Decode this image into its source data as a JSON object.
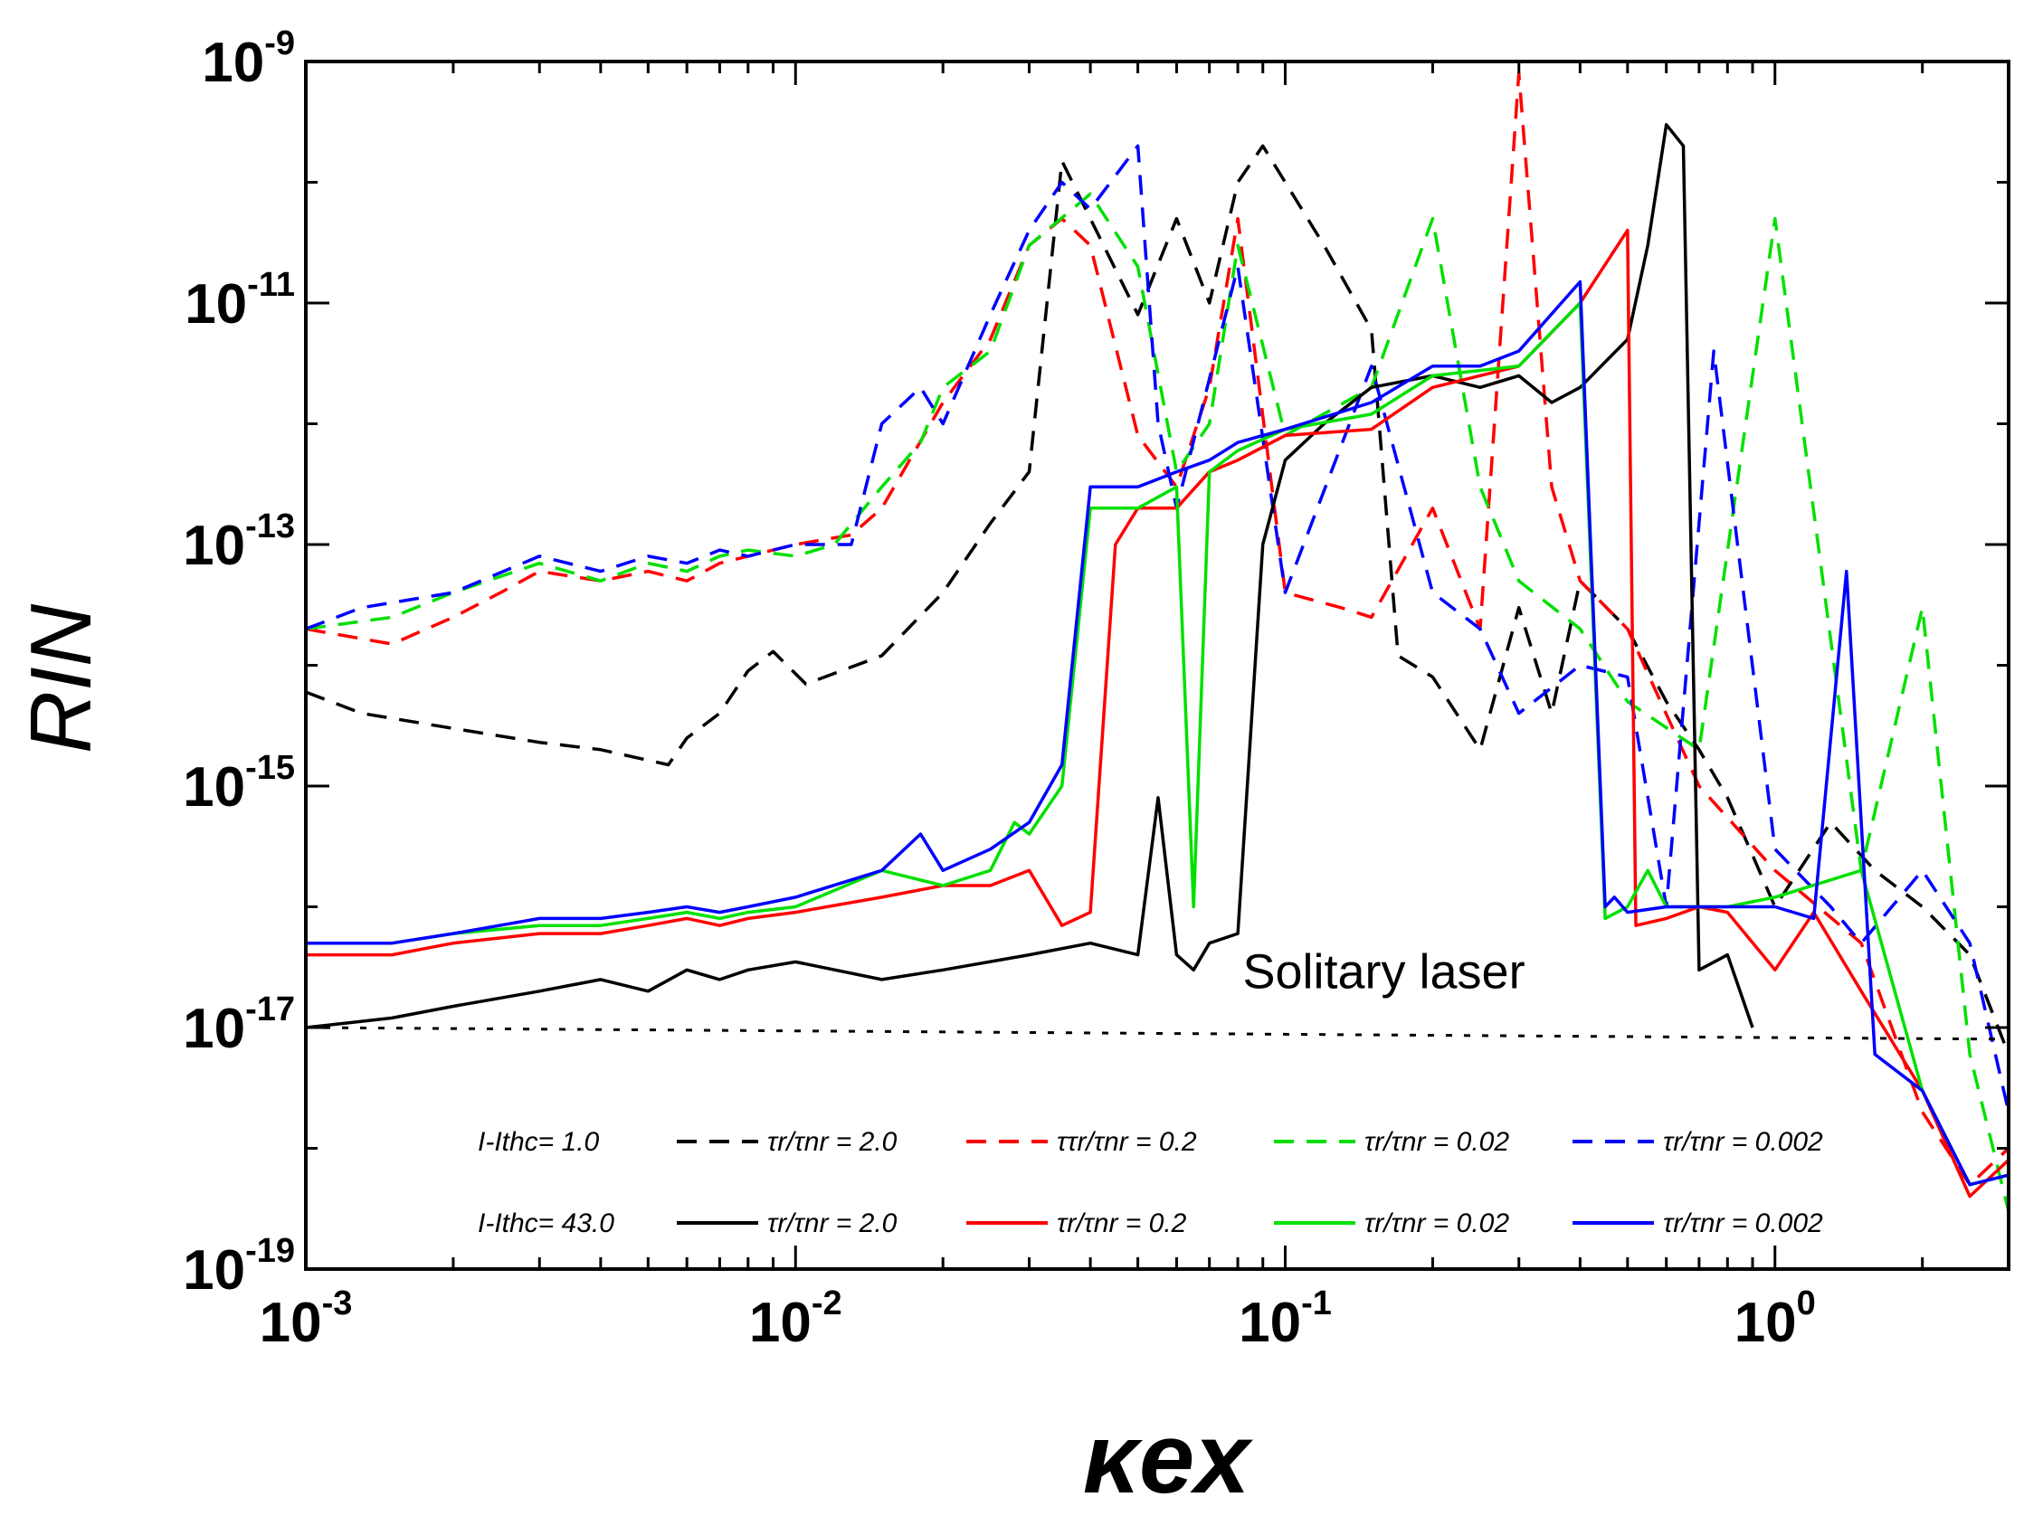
{
  "chart_data": {
    "type": "line",
    "title": "",
    "xlabel": "κex",
    "ylabel": "RIN",
    "x_scale": "log",
    "y_scale": "log",
    "xlim": [
      0.001,
      3.0
    ],
    "ylim": [
      1e-19,
      1e-09
    ],
    "grid": false,
    "legend_position": "bottom-left",
    "x_ticks": [
      {
        "value": 0.001,
        "base": "10",
        "exp": "-3"
      },
      {
        "value": 0.01,
        "base": "10",
        "exp": "-2"
      },
      {
        "value": 0.1,
        "base": "10",
        "exp": "-1"
      },
      {
        "value": 1.0,
        "base": "10",
        "exp": "0"
      }
    ],
    "y_ticks": [
      {
        "value": 1e-09,
        "base": "10",
        "exp": "-9"
      },
      {
        "value": 1e-11,
        "base": "10",
        "exp": "-11"
      },
      {
        "value": 1e-13,
        "base": "10",
        "exp": "-13"
      },
      {
        "value": 1e-15,
        "base": "10",
        "exp": "-15"
      },
      {
        "value": 1e-17,
        "base": "10",
        "exp": "-17"
      },
      {
        "value": 1e-19,
        "base": "10",
        "exp": "-19"
      }
    ],
    "annotations": [
      {
        "text": "Solitary laser",
        "x": 0.2,
        "y": 3e-17
      }
    ],
    "legend": {
      "row1_label": "I-Ithc= 1.0",
      "row2_label": "I-Ithc= 43.0",
      "row1_entries": [
        "τr/τnr = 2.0",
        "ττr/τnr = 0.2",
        "τr/τnr = 0.02",
        "τr/τnr = 0.002"
      ],
      "row2_entries": [
        "τr/τnr = 2.0",
        "τr/τnr = 0.2",
        "τr/τnr = 0.02",
        "τr/τnr = 0.002"
      ],
      "colors": [
        "#000000",
        "#ff0000",
        "#00e000",
        "#0000ff"
      ]
    },
    "series": [
      {
        "name": "I-Ithc= 1.0, τr/τnr = 2.0",
        "color": "#000000",
        "dash": "dashed",
        "x": [
          0.001,
          0.0013,
          0.002,
          0.003,
          0.004,
          0.0055,
          0.006,
          0.007,
          0.008,
          0.009,
          0.0105,
          0.015,
          0.02,
          0.025,
          0.03,
          0.035,
          0.04,
          0.05,
          0.06,
          0.07,
          0.08,
          0.09,
          0.1,
          0.12,
          0.15,
          0.17,
          0.2,
          0.25,
          0.3,
          0.35,
          0.4,
          0.5,
          0.6,
          0.7,
          0.8,
          1.0,
          1.3,
          1.6,
          2.0,
          2.5,
          3.0
        ],
        "y": [
          6e-15,
          4e-15,
          3e-15,
          2.3e-15,
          2e-15,
          1.5e-15,
          2.5e-15,
          4e-15,
          9e-15,
          1.3e-14,
          7e-15,
          1.2e-14,
          4e-14,
          1.5e-13,
          4e-13,
          1.5e-10,
          5e-11,
          8e-12,
          5e-11,
          1e-11,
          1e-10,
          2e-10,
          1e-10,
          3e-11,
          6e-12,
          1.2e-14,
          8e-15,
          2e-15,
          3e-14,
          4e-15,
          5e-14,
          2e-14,
          5e-15,
          2e-15,
          8e-16,
          1e-16,
          5e-16,
          2e-16,
          1e-16,
          4e-17,
          6e-18
        ]
      },
      {
        "name": "I-Ithc= 1.0, ττr/τnr = 0.2",
        "color": "#ff0000",
        "dash": "dashed",
        "x": [
          0.001,
          0.0015,
          0.002,
          0.0025,
          0.003,
          0.004,
          0.005,
          0.006,
          0.007,
          0.008,
          0.01,
          0.013,
          0.015,
          0.02,
          0.025,
          0.03,
          0.035,
          0.04,
          0.05,
          0.06,
          0.07,
          0.08,
          0.1,
          0.13,
          0.15,
          0.2,
          0.25,
          0.3,
          0.35,
          0.4,
          0.5,
          0.7,
          1.0,
          1.5,
          2.0,
          2.5,
          3.0
        ],
        "y": [
          2e-14,
          1.5e-14,
          2.5e-14,
          4e-14,
          6e-14,
          5e-14,
          6e-14,
          5e-14,
          7e-14,
          8e-14,
          1e-13,
          1.2e-13,
          2e-13,
          1.5e-12,
          5e-12,
          3e-11,
          5e-11,
          3e-11,
          8e-13,
          3e-13,
          2e-12,
          5e-11,
          4e-14,
          3e-14,
          2.5e-14,
          2e-13,
          2e-14,
          8e-10,
          3e-13,
          5e-14,
          2e-14,
          1e-15,
          2e-16,
          5e-17,
          2e-18,
          5e-19,
          1e-18
        ]
      },
      {
        "name": "I-Ithc= 1.0, τr/τnr = 0.02",
        "color": "#00e000",
        "dash": "dashed",
        "x": [
          0.001,
          0.0015,
          0.002,
          0.003,
          0.004,
          0.005,
          0.006,
          0.007,
          0.008,
          0.01,
          0.012,
          0.015,
          0.018,
          0.02,
          0.025,
          0.03,
          0.04,
          0.05,
          0.06,
          0.07,
          0.08,
          0.1,
          0.15,
          0.2,
          0.25,
          0.3,
          0.4,
          0.5,
          0.7,
          1.0,
          1.5,
          2.0,
          2.5,
          3.0
        ],
        "y": [
          2e-14,
          2.5e-14,
          4e-14,
          7e-14,
          5e-14,
          7e-14,
          6e-14,
          8e-14,
          9e-14,
          8e-14,
          1e-13,
          3e-13,
          7e-13,
          2e-12,
          4e-12,
          3e-11,
          8e-11,
          2e-11,
          4e-13,
          1e-12,
          3e-11,
          8e-13,
          2e-12,
          5e-11,
          3e-13,
          5e-14,
          2e-14,
          5e-15,
          2e-15,
          5e-11,
          2e-16,
          3e-14,
          6e-18,
          3e-19
        ]
      },
      {
        "name": "I-Ithc= 1.0, τr/τnr = 0.002",
        "color": "#0000ff",
        "dash": "dashed",
        "x": [
          0.001,
          0.0013,
          0.002,
          0.003,
          0.004,
          0.005,
          0.006,
          0.007,
          0.008,
          0.01,
          0.013,
          0.015,
          0.018,
          0.02,
          0.025,
          0.03,
          0.035,
          0.04,
          0.05,
          0.055,
          0.06,
          0.08,
          0.1,
          0.15,
          0.2,
          0.25,
          0.3,
          0.4,
          0.5,
          0.6,
          0.75,
          1.0,
          1.3,
          1.5,
          2.0,
          2.5,
          3.0
        ],
        "y": [
          2e-14,
          3e-14,
          4e-14,
          8e-14,
          6e-14,
          8e-14,
          7e-14,
          9e-14,
          8e-14,
          1e-13,
          1e-13,
          1e-12,
          2e-12,
          1e-12,
          8e-12,
          4e-11,
          1e-10,
          6e-11,
          2e-10,
          1e-12,
          2e-13,
          2e-11,
          4e-14,
          3e-12,
          4e-14,
          2e-14,
          4e-15,
          1e-14,
          8e-15,
          1e-16,
          4e-12,
          3e-16,
          1e-16,
          5e-17,
          2e-16,
          5e-17,
          2e-18
        ]
      },
      {
        "name": "I-Ithc= 43.0, τr/τnr = 2.0",
        "color": "#000000",
        "dash": "solid",
        "x": [
          0.001,
          0.0015,
          0.002,
          0.003,
          0.004,
          0.005,
          0.006,
          0.007,
          0.008,
          0.01,
          0.015,
          0.02,
          0.03,
          0.04,
          0.05,
          0.055,
          0.06,
          0.065,
          0.07,
          0.08,
          0.09,
          0.1,
          0.12,
          0.15,
          0.2,
          0.25,
          0.3,
          0.35,
          0.4,
          0.5,
          0.55,
          0.6,
          0.65,
          0.7,
          0.8,
          0.9
        ],
        "y": [
          1e-17,
          1.2e-17,
          1.5e-17,
          2e-17,
          2.5e-17,
          2e-17,
          3e-17,
          2.5e-17,
          3e-17,
          3.5e-17,
          2.5e-17,
          3e-17,
          4e-17,
          5e-17,
          4e-17,
          8e-16,
          4e-17,
          3e-17,
          5e-17,
          6e-17,
          1e-13,
          5e-13,
          1e-12,
          2e-12,
          2.5e-12,
          2e-12,
          2.5e-12,
          1.5e-12,
          2e-12,
          5e-12,
          3e-11,
          3e-10,
          2e-10,
          3e-17,
          4e-17,
          1e-17
        ]
      },
      {
        "name": "I-Ithc= 43.0, τr/τnr = 0.2",
        "color": "#ff0000",
        "dash": "solid",
        "x": [
          0.001,
          0.0015,
          0.002,
          0.003,
          0.004,
          0.005,
          0.006,
          0.007,
          0.008,
          0.01,
          0.015,
          0.02,
          0.025,
          0.03,
          0.035,
          0.04,
          0.045,
          0.05,
          0.06,
          0.07,
          0.08,
          0.1,
          0.15,
          0.2,
          0.3,
          0.4,
          0.5,
          0.52,
          0.6,
          0.7,
          0.8,
          1.0,
          1.2,
          1.5,
          2.0,
          2.5,
          3.0
        ],
        "y": [
          4e-17,
          4e-17,
          5e-17,
          6e-17,
          6e-17,
          7e-17,
          8e-17,
          7e-17,
          8e-17,
          9e-17,
          1.2e-16,
          1.5e-16,
          1.5e-16,
          2e-16,
          7e-17,
          9e-17,
          1e-13,
          2e-13,
          2e-13,
          4e-13,
          5e-13,
          8e-13,
          9e-13,
          2e-12,
          3e-12,
          1e-11,
          4e-11,
          7e-17,
          8e-17,
          1e-16,
          9e-17,
          3e-17,
          9e-17,
          2e-17,
          3e-18,
          4e-19,
          8e-19
        ]
      },
      {
        "name": "I-Ithc= 43.0, τr/τnr = 0.02",
        "color": "#00e000",
        "dash": "solid",
        "x": [
          0.001,
          0.0015,
          0.002,
          0.003,
          0.004,
          0.005,
          0.006,
          0.007,
          0.008,
          0.01,
          0.015,
          0.02,
          0.025,
          0.028,
          0.03,
          0.035,
          0.04,
          0.045,
          0.05,
          0.06,
          0.065,
          0.07,
          0.08,
          0.1,
          0.15,
          0.2,
          0.3,
          0.4,
          0.45,
          0.5,
          0.55,
          0.6,
          0.8,
          1.0,
          1.5,
          2.0,
          2.5,
          3.0
        ],
        "y": [
          5e-17,
          5e-17,
          6e-17,
          7e-17,
          7e-17,
          8e-17,
          9e-17,
          8e-17,
          9e-17,
          1e-16,
          2e-16,
          1.5e-16,
          2e-16,
          5e-16,
          4e-16,
          1e-15,
          2e-13,
          2e-13,
          2e-13,
          3e-13,
          1e-16,
          4e-13,
          6e-13,
          9e-13,
          1.2e-12,
          2.5e-12,
          3e-12,
          1e-11,
          8e-17,
          1e-16,
          2e-16,
          1e-16,
          1e-16,
          1.2e-16,
          2e-16,
          3e-18,
          5e-19,
          6e-19
        ]
      },
      {
        "name": "I-Ithc= 43.0, τr/τnr = 0.002",
        "color": "#0000ff",
        "dash": "solid",
        "x": [
          0.001,
          0.0015,
          0.002,
          0.003,
          0.004,
          0.005,
          0.006,
          0.007,
          0.008,
          0.01,
          0.015,
          0.018,
          0.02,
          0.025,
          0.03,
          0.035,
          0.04,
          0.045,
          0.05,
          0.06,
          0.07,
          0.08,
          0.1,
          0.15,
          0.2,
          0.25,
          0.3,
          0.4,
          0.45,
          0.47,
          0.5,
          0.6,
          0.8,
          1.0,
          1.2,
          1.4,
          1.6,
          2.0,
          2.5,
          3.0
        ],
        "y": [
          5e-17,
          5e-17,
          6e-17,
          8e-17,
          8e-17,
          9e-17,
          1e-16,
          9e-17,
          1e-16,
          1.2e-16,
          2e-16,
          4e-16,
          2e-16,
          3e-16,
          5e-16,
          1.5e-15,
          3e-13,
          3e-13,
          3e-13,
          4e-13,
          5e-13,
          7e-13,
          9e-13,
          1.5e-12,
          3e-12,
          3e-12,
          4e-12,
          1.5e-11,
          1e-16,
          1.2e-16,
          9e-17,
          1e-16,
          1e-16,
          1e-16,
          8e-17,
          6e-14,
          6e-18,
          3e-18,
          5e-19,
          6e-19
        ]
      },
      {
        "name": "Solitary laser",
        "color": "#000000",
        "dash": "dotted",
        "x": [
          0.001,
          3.0
        ],
        "y": [
          1e-17,
          8e-18
        ]
      }
    ]
  }
}
